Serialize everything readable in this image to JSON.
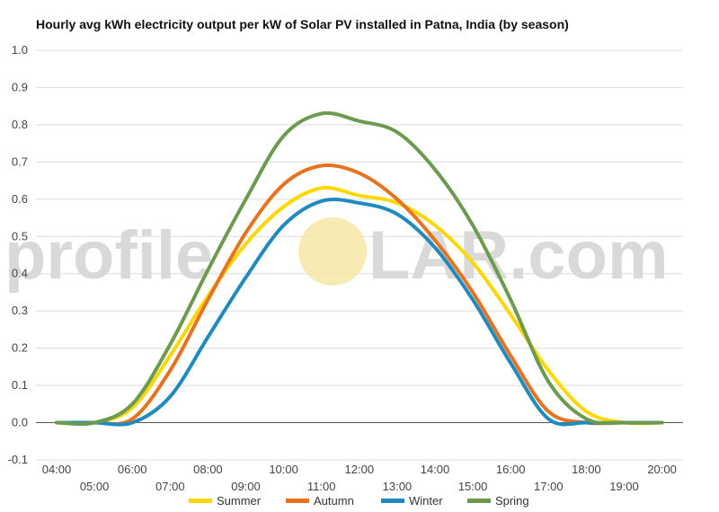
{
  "chart_data": {
    "type": "line",
    "title": "Hourly avg kWh electricity output per kW of Solar PV installed in Patna, India (by season)",
    "xlabel": "",
    "ylabel": "",
    "x": [
      "04:00",
      "05:00",
      "06:00",
      "07:00",
      "08:00",
      "09:00",
      "10:00",
      "11:00",
      "12:00",
      "13:00",
      "14:00",
      "15:00",
      "16:00",
      "17:00",
      "18:00",
      "19:00",
      "20:00"
    ],
    "ylim": [
      -0.1,
      1.0
    ],
    "yticks": [
      "-0.1",
      "0.0",
      "0.1",
      "0.2",
      "0.3",
      "0.4",
      "0.5",
      "0.6",
      "0.7",
      "0.8",
      "0.9",
      "1.0"
    ],
    "grid": true,
    "legend_position": "bottom",
    "series": [
      {
        "name": "Summer",
        "color": "#ffd700",
        "values": [
          0.0,
          0.0,
          0.04,
          0.18,
          0.34,
          0.48,
          0.58,
          0.63,
          0.61,
          0.59,
          0.53,
          0.43,
          0.29,
          0.14,
          0.03,
          0.0,
          0.0
        ]
      },
      {
        "name": "Autumn",
        "color": "#e8731f",
        "values": [
          0.0,
          0.0,
          0.01,
          0.14,
          0.33,
          0.51,
          0.64,
          0.69,
          0.67,
          0.6,
          0.49,
          0.35,
          0.18,
          0.03,
          0.0,
          0.0,
          0.0
        ]
      },
      {
        "name": "Winter",
        "color": "#1f8ac0",
        "values": [
          0.0,
          0.0,
          0.0,
          0.07,
          0.23,
          0.39,
          0.53,
          0.595,
          0.59,
          0.56,
          0.47,
          0.33,
          0.16,
          0.01,
          0.0,
          0.0,
          0.0
        ]
      },
      {
        "name": "Spring",
        "color": "#6c9a4e",
        "values": [
          0.0,
          0.0,
          0.05,
          0.21,
          0.41,
          0.6,
          0.77,
          0.83,
          0.81,
          0.78,
          0.68,
          0.53,
          0.33,
          0.11,
          0.01,
          0.0,
          0.0
        ]
      }
    ]
  },
  "watermark": {
    "text_before": "profile",
    "text_after": "LAR.com",
    "sun_color": "#f5e6a0"
  }
}
